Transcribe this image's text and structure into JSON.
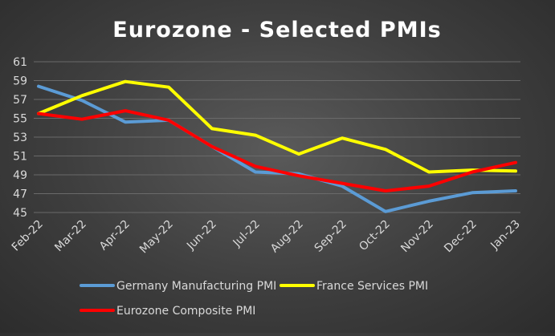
{
  "chart_data": {
    "type": "line",
    "title": "Eurozone - Selected PMIs",
    "xlabel": "",
    "ylabel": "",
    "categories": [
      "Feb-22",
      "Mar-22",
      "Apr-22",
      "May-22",
      "Jun-22",
      "Jul-22",
      "Aug-22",
      "Sep-22",
      "Oct-22",
      "Nov-22",
      "Dec-22",
      "Jan-23"
    ],
    "ylim": [
      45,
      61
    ],
    "yticks": [
      45,
      47,
      49,
      51,
      53,
      55,
      57,
      59,
      61
    ],
    "grid": true,
    "legend_position": "bottom",
    "series": [
      {
        "name": "Germany Manufacturing PMI",
        "color": "#5b9bd5",
        "values": [
          58.4,
          56.9,
          54.6,
          54.8,
          52.0,
          49.3,
          49.1,
          47.8,
          45.1,
          46.2,
          47.1,
          47.3
        ]
      },
      {
        "name": "France Services PMI",
        "color": "#ffff00",
        "values": [
          55.5,
          57.4,
          58.9,
          58.3,
          53.9,
          53.2,
          51.2,
          52.9,
          51.7,
          49.3,
          49.5,
          49.4
        ]
      },
      {
        "name": "Eurozone Composite PMI",
        "color": "#ff0000",
        "values": [
          55.5,
          54.9,
          55.8,
          54.8,
          52.0,
          49.9,
          48.9,
          48.1,
          47.3,
          47.8,
          49.3,
          50.3
        ]
      }
    ]
  }
}
